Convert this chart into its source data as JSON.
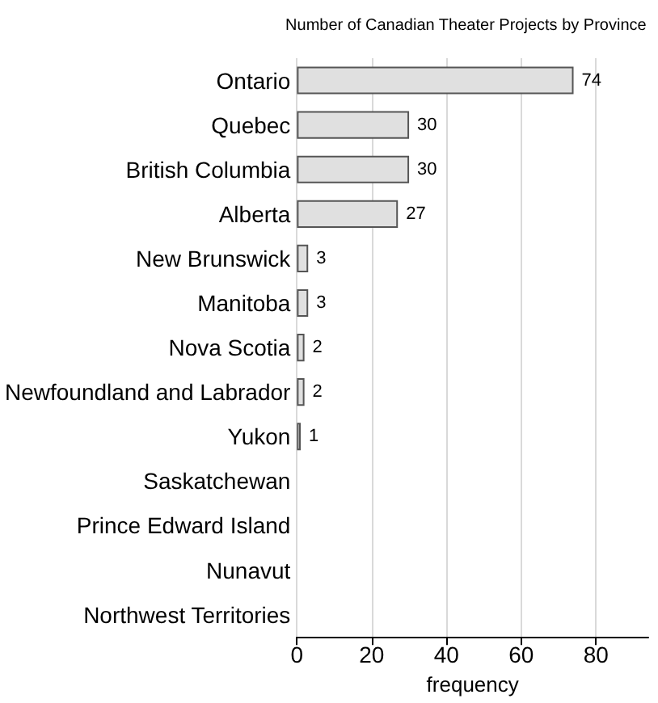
{
  "chart_data": {
    "type": "bar",
    "orientation": "horizontal",
    "title": "Number of Canadian Theater Projects by Province",
    "xlabel": "frequency",
    "categories": [
      "Ontario",
      "Quebec",
      "British Columbia",
      "Alberta",
      "New Brunswick",
      "Manitoba",
      "Nova Scotia",
      "Newfoundland and Labrador",
      "Yukon",
      "Saskatchewan",
      "Prince Edward Island",
      "Nunavut",
      "Northwest Territories"
    ],
    "values": [
      74,
      30,
      30,
      27,
      3,
      3,
      2,
      2,
      1,
      0,
      0,
      0,
      0
    ],
    "value_labels": [
      "74",
      "30",
      "30",
      "27",
      "3",
      "3",
      "2",
      "2",
      "1",
      null,
      null,
      null,
      null
    ],
    "color": "#e0e0e0",
    "xlim": [
      0,
      94
    ],
    "xticks": [
      0,
      20,
      40,
      60,
      80
    ],
    "grid": "x"
  }
}
